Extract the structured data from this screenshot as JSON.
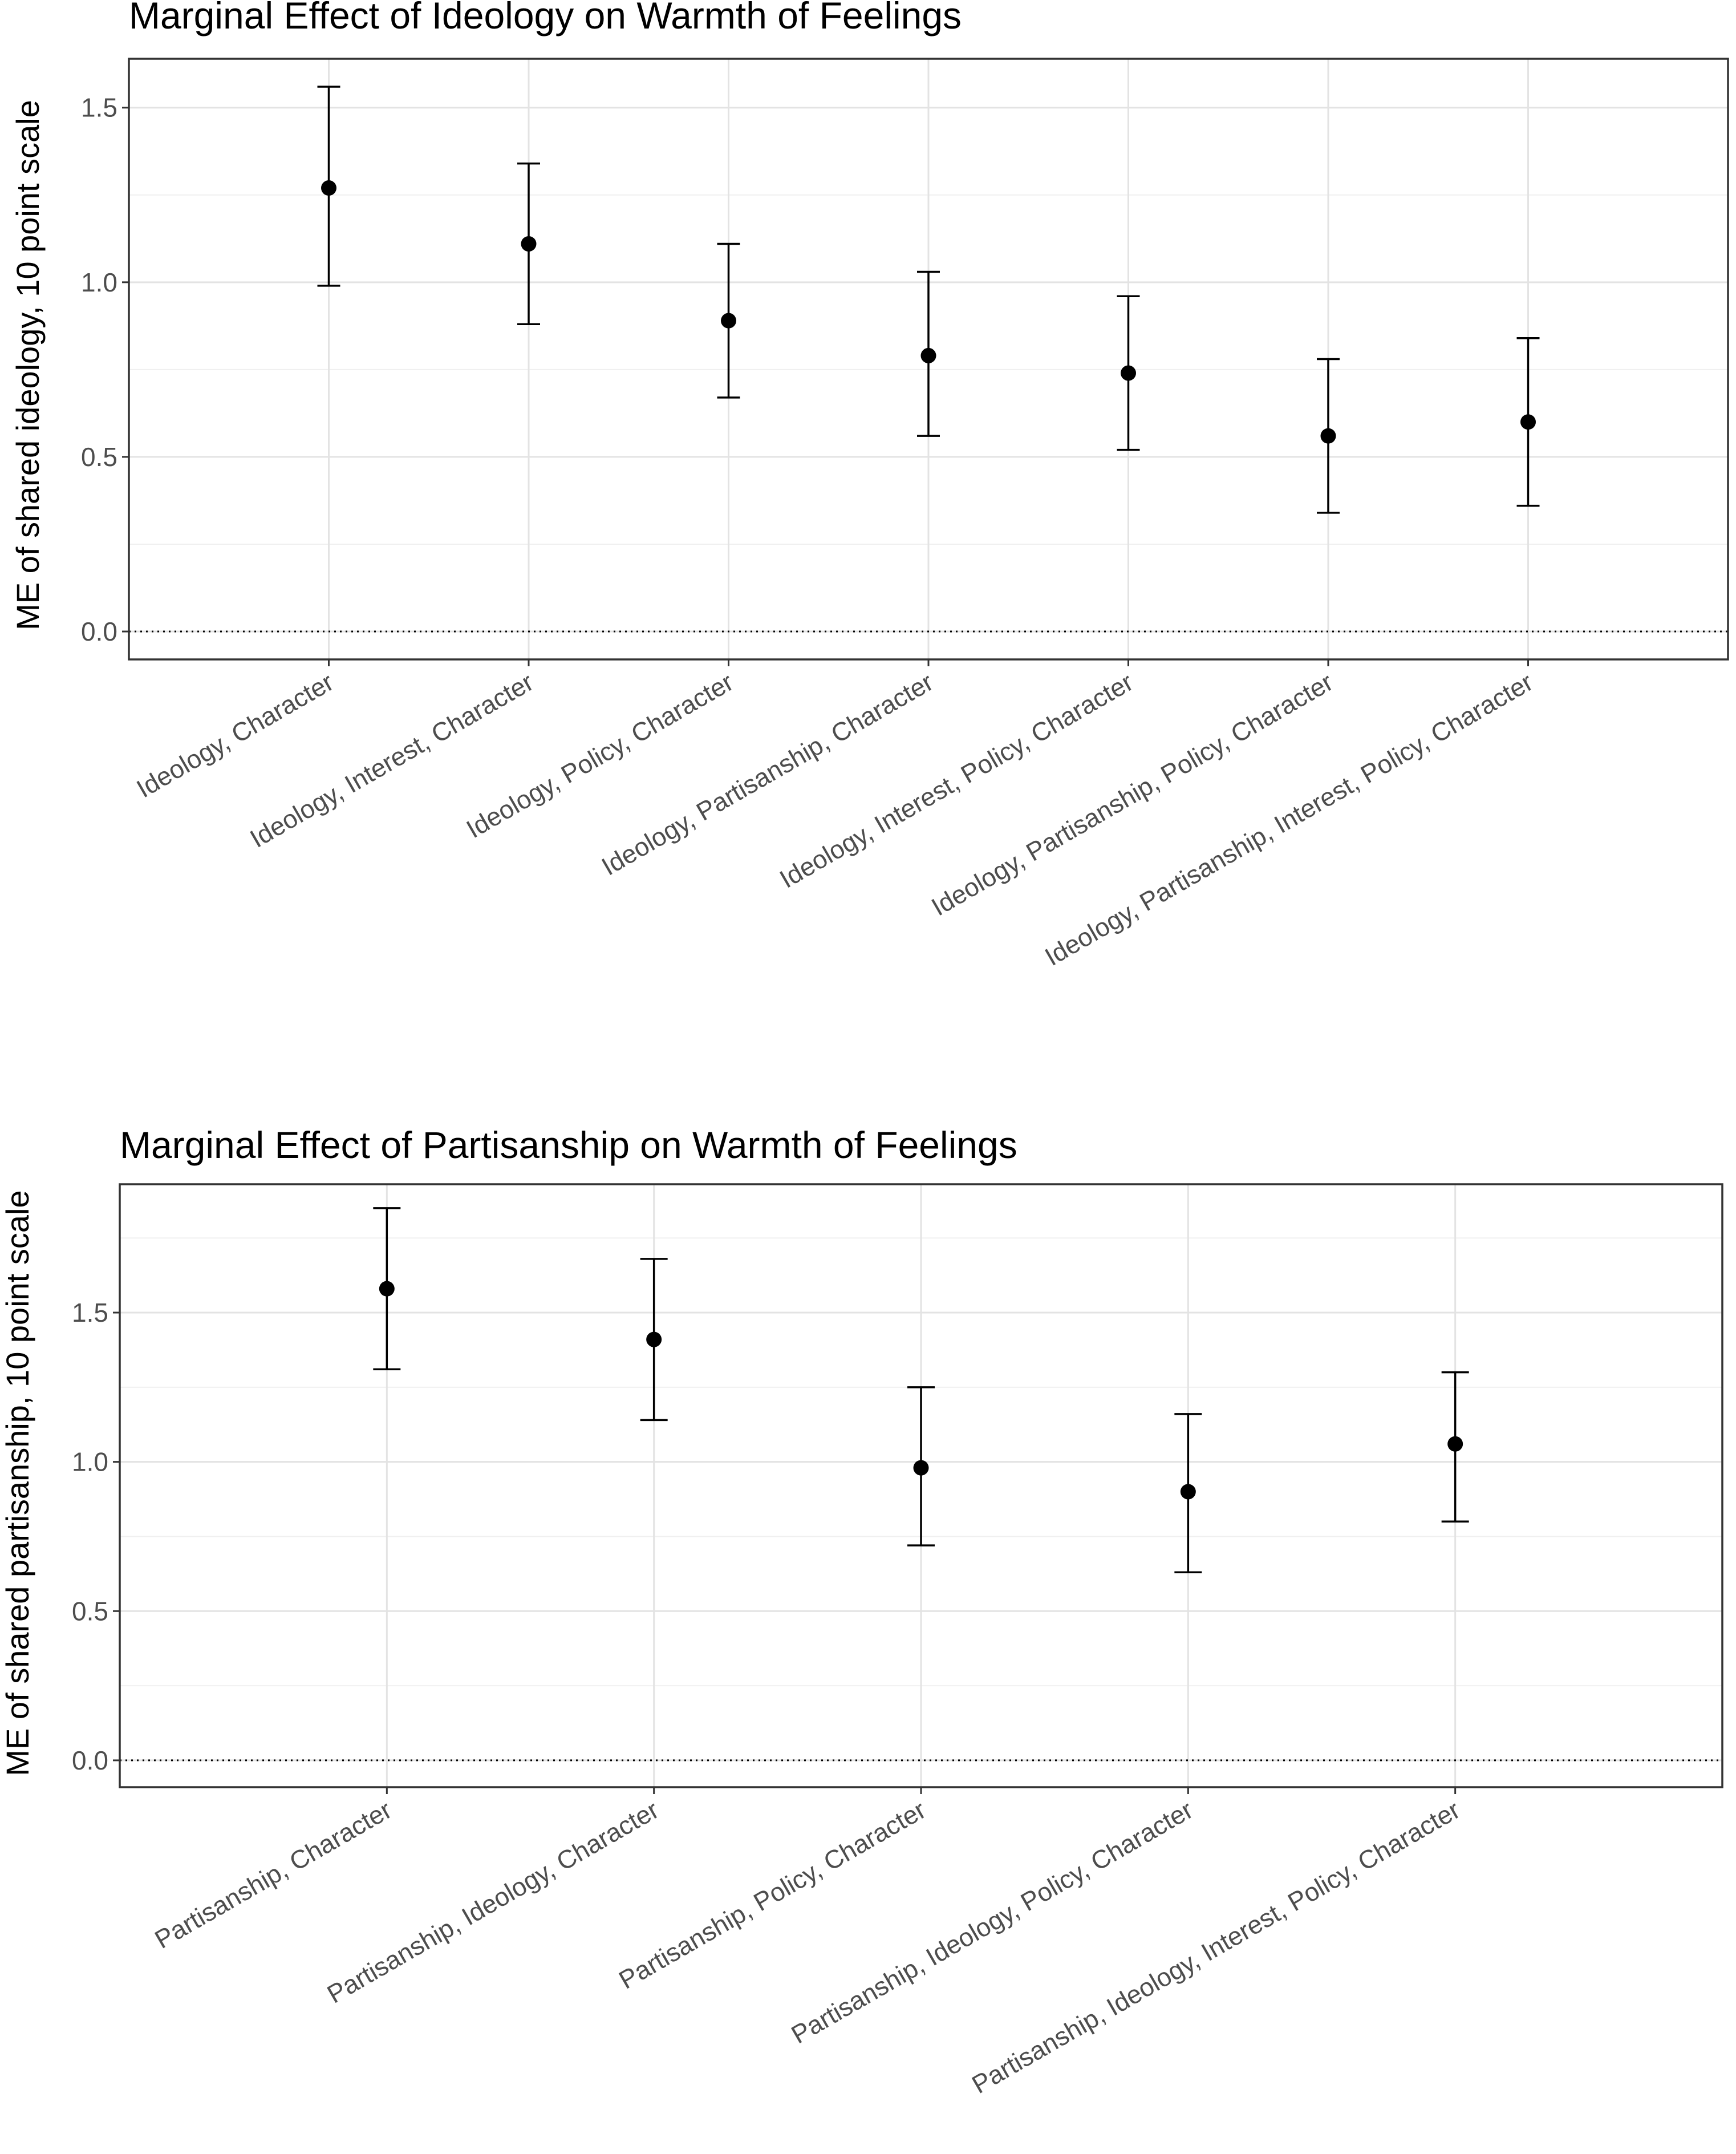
{
  "chart_data": [
    {
      "type": "scatter",
      "title": "Marginal Effect of Ideology on Warmth of Feelings",
      "xlabel": "",
      "ylabel": "ME of shared ideology, 10 point scale",
      "ylim": [
        -0.08,
        1.64
      ],
      "yticks": [
        0.0,
        0.5,
        1.0,
        1.5
      ],
      "ytick_labels": [
        "0.0",
        "0.5",
        "1.0",
        "1.5"
      ],
      "reference_line": 0.0,
      "categories": [
        "Ideology, Character",
        "Ideology, Interest, Character",
        "Ideology, Policy, Character",
        "Ideology, Partisanship, Character",
        "Ideology, Interest, Policy, Character",
        "Ideology, Partisanship, Policy, Character",
        "Ideology, Partisanship, Interest, Policy, Character"
      ],
      "values": [
        1.27,
        1.11,
        0.89,
        0.79,
        0.74,
        0.56,
        0.6
      ],
      "lower": [
        0.99,
        0.88,
        0.67,
        0.56,
        0.52,
        0.34,
        0.36
      ],
      "upper": [
        1.56,
        1.34,
        1.11,
        1.03,
        0.96,
        0.78,
        0.84
      ]
    },
    {
      "type": "scatter",
      "title": "Marginal Effect of Partisanship on Warmth of Feelings",
      "xlabel": "",
      "ylabel": "ME of shared partisanship, 10 point scale",
      "ylim": [
        -0.09,
        1.93
      ],
      "yticks": [
        0.0,
        0.5,
        1.0,
        1.5
      ],
      "ytick_labels": [
        "0.0",
        "0.5",
        "1.0",
        "1.5"
      ],
      "reference_line": 0.0,
      "categories": [
        "Partisanship, Character",
        "Partisanship, Ideology, Character",
        "Partisanship, Policy, Character",
        "Partisanship, Ideology, Policy, Character",
        "Partisanship, Ideology, Interest, Policy, Character"
      ],
      "values": [
        1.58,
        1.41,
        0.98,
        0.9,
        1.06
      ],
      "lower": [
        1.31,
        1.14,
        0.72,
        0.63,
        0.8
      ],
      "upper": [
        1.85,
        1.68,
        1.25,
        1.16,
        1.3
      ]
    }
  ]
}
